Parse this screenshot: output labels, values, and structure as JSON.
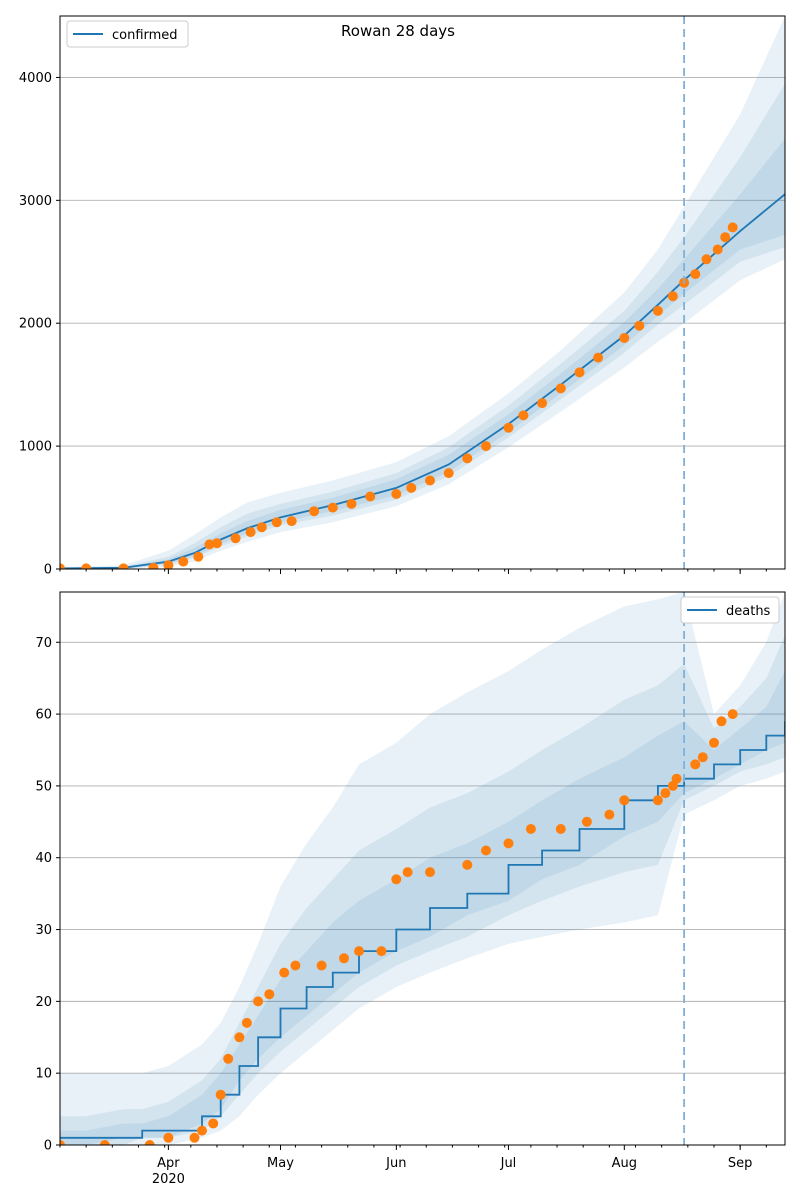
{
  "title": "Rowan 28 days",
  "colors": {
    "model": "#1f77b4",
    "observed": "#ff7f0e",
    "band": "#1f77b4",
    "grid": "#b0b0b0",
    "forecast_line": "#7fb0d8"
  },
  "x_axis": {
    "start_date": "2020-03-03",
    "end_date": "2020-09-13",
    "forecast_start": "2020-08-17",
    "month_labels": [
      {
        "date": "2020-04-01",
        "label": "Apr",
        "sub": "2020"
      },
      {
        "date": "2020-05-01",
        "label": "May",
        "sub": ""
      },
      {
        "date": "2020-06-01",
        "label": "Jun",
        "sub": ""
      },
      {
        "date": "2020-07-01",
        "label": "Jul",
        "sub": ""
      },
      {
        "date": "2020-08-01",
        "label": "Aug",
        "sub": ""
      },
      {
        "date": "2020-09-01",
        "label": "Sep",
        "sub": ""
      }
    ]
  },
  "chart_data": [
    {
      "type": "line",
      "series_name": "confirmed",
      "legend_position": "upper-left",
      "ylim": [
        0,
        4500
      ],
      "yticks": [
        0,
        1000,
        2000,
        3000,
        4000
      ],
      "grid": "y",
      "model_line": {
        "x": [
          "2020-03-03",
          "2020-03-20",
          "2020-04-01",
          "2020-04-08",
          "2020-04-15",
          "2020-04-22",
          "2020-05-01",
          "2020-05-15",
          "2020-06-01",
          "2020-06-15",
          "2020-07-01",
          "2020-07-15",
          "2020-08-01",
          "2020-08-10",
          "2020-08-17",
          "2020-09-01",
          "2020-09-13"
        ],
        "y": [
          5,
          10,
          60,
          130,
          240,
          330,
          420,
          520,
          660,
          850,
          1180,
          1500,
          1900,
          2150,
          2350,
          2750,
          3050
        ]
      },
      "bands": [
        {
          "lower": [
            0,
            0,
            20,
            60,
            150,
            220,
            300,
            380,
            510,
            690,
            990,
            1280,
            1640,
            1850,
            2000,
            2350,
            2520
          ],
          "upper": [
            15,
            30,
            150,
            280,
            420,
            540,
            620,
            720,
            870,
            1080,
            1430,
            1780,
            2250,
            2600,
            2950,
            3700,
            4500
          ]
        },
        {
          "lower": [
            2,
            3,
            35,
            90,
            185,
            265,
            355,
            435,
            565,
            755,
            1070,
            1380,
            1760,
            1990,
            2150,
            2500,
            2620
          ],
          "upper": [
            10,
            20,
            100,
            210,
            340,
            450,
            530,
            630,
            780,
            990,
            1330,
            1670,
            2100,
            2420,
            2700,
            3350,
            3950
          ]
        },
        {
          "lower": [
            3,
            6,
            45,
            105,
            205,
            290,
            380,
            470,
            600,
            790,
            1115,
            1430,
            1820,
            2060,
            2240,
            2600,
            2720
          ],
          "upper": [
            8,
            15,
            80,
            170,
            290,
            390,
            480,
            580,
            730,
            930,
            1260,
            1590,
            2010,
            2280,
            2520,
            3050,
            3500
          ]
        }
      ],
      "observed": {
        "x": [
          "2020-03-03",
          "2020-03-10",
          "2020-03-20",
          "2020-03-28",
          "2020-04-01",
          "2020-04-05",
          "2020-04-09",
          "2020-04-12",
          "2020-04-14",
          "2020-04-19",
          "2020-04-23",
          "2020-04-26",
          "2020-04-30",
          "2020-05-04",
          "2020-05-10",
          "2020-05-15",
          "2020-05-20",
          "2020-05-25",
          "2020-06-01",
          "2020-06-05",
          "2020-06-10",
          "2020-06-15",
          "2020-06-20",
          "2020-06-25",
          "2020-07-01",
          "2020-07-05",
          "2020-07-10",
          "2020-07-15",
          "2020-07-20",
          "2020-07-25",
          "2020-08-01",
          "2020-08-05",
          "2020-08-10",
          "2020-08-14",
          "2020-08-17",
          "2020-08-20",
          "2020-08-23",
          "2020-08-26",
          "2020-08-28",
          "2020-08-30"
        ],
        "y": [
          5,
          5,
          5,
          10,
          30,
          60,
          100,
          200,
          210,
          250,
          300,
          340,
          380,
          390,
          470,
          500,
          530,
          590,
          610,
          660,
          720,
          780,
          900,
          1000,
          1150,
          1250,
          1350,
          1470,
          1600,
          1720,
          1880,
          1980,
          2100,
          2220,
          2330,
          2400,
          2520,
          2600,
          2700,
          2780
        ]
      }
    },
    {
      "type": "line",
      "series_name": "deaths",
      "legend_position": "upper-right",
      "ylim": [
        0,
        77
      ],
      "yticks": [
        0,
        10,
        20,
        30,
        40,
        50,
        60,
        70
      ],
      "grid": "y",
      "model_line": {
        "x": [
          "2020-03-03",
          "2020-03-10",
          "2020-03-20",
          "2020-03-25",
          "2020-04-01",
          "2020-04-10",
          "2020-04-15",
          "2020-04-20",
          "2020-04-25",
          "2020-05-01",
          "2020-05-08",
          "2020-05-15",
          "2020-05-22",
          "2020-06-01",
          "2020-06-10",
          "2020-06-20",
          "2020-07-01",
          "2020-07-10",
          "2020-07-20",
          "2020-08-01",
          "2020-08-10",
          "2020-08-17",
          "2020-08-25",
          "2020-09-01",
          "2020-09-08",
          "2020-09-13"
        ],
        "y": [
          1,
          1,
          1,
          2,
          2,
          4,
          7,
          11,
          15,
          19,
          22,
          24,
          27,
          30,
          33,
          35,
          39,
          41,
          44,
          48,
          50,
          51,
          53,
          55,
          57,
          59
        ]
      },
      "bands": [
        {
          "lower": [
            0,
            0,
            0,
            0,
            0,
            1,
            2,
            4,
            7,
            10,
            13,
            16,
            19,
            22,
            24,
            26,
            28,
            29,
            30,
            31,
            32,
            46,
            48,
            50,
            51,
            52
          ],
          "upper": [
            10,
            10,
            10,
            10,
            11,
            14,
            17,
            22,
            28,
            36,
            42,
            47,
            53,
            56,
            60,
            63,
            66,
            69,
            72,
            75,
            76,
            77,
            60,
            64,
            70,
            77
          ]
        },
        {
          "lower": [
            0,
            0,
            0,
            1,
            1,
            2,
            4,
            7,
            10,
            13,
            16,
            19,
            22,
            25,
            27,
            29,
            32,
            34,
            36,
            38,
            39,
            48,
            50,
            52,
            53,
            54
          ],
          "upper": [
            4,
            4,
            5,
            5,
            6,
            9,
            12,
            17,
            22,
            28,
            33,
            37,
            41,
            44,
            47,
            49,
            52,
            55,
            58,
            62,
            64,
            67,
            58,
            61,
            65,
            71
          ]
        },
        {
          "lower": [
            0,
            0,
            1,
            1,
            1,
            3,
            5,
            9,
            12,
            15,
            18,
            21,
            24,
            27,
            29,
            32,
            34,
            37,
            39,
            43,
            45,
            49,
            51,
            53,
            55,
            56
          ],
          "upper": [
            2,
            2,
            3,
            3,
            4,
            7,
            10,
            14,
            18,
            23,
            27,
            31,
            34,
            37,
            40,
            42,
            45,
            48,
            51,
            54,
            57,
            59,
            55,
            58,
            61,
            66
          ]
        }
      ],
      "observed": {
        "x": [
          "2020-03-03",
          "2020-03-15",
          "2020-03-27",
          "2020-04-01",
          "2020-04-08",
          "2020-04-10",
          "2020-04-13",
          "2020-04-15",
          "2020-04-17",
          "2020-04-20",
          "2020-04-22",
          "2020-04-25",
          "2020-04-28",
          "2020-05-02",
          "2020-05-05",
          "2020-05-12",
          "2020-05-18",
          "2020-05-22",
          "2020-05-28",
          "2020-06-01",
          "2020-06-04",
          "2020-06-10",
          "2020-06-20",
          "2020-06-25",
          "2020-07-01",
          "2020-07-07",
          "2020-07-15",
          "2020-07-22",
          "2020-07-28",
          "2020-08-01",
          "2020-08-10",
          "2020-08-12",
          "2020-08-14",
          "2020-08-15",
          "2020-08-20",
          "2020-08-22",
          "2020-08-25",
          "2020-08-27",
          "2020-08-30"
        ],
        "y": [
          0,
          0,
          0,
          1,
          1,
          2,
          3,
          7,
          12,
          15,
          17,
          20,
          21,
          24,
          25,
          25,
          26,
          27,
          27,
          37,
          38,
          38,
          39,
          41,
          42,
          44,
          44,
          45,
          46,
          48,
          48,
          49,
          50,
          51,
          53,
          54,
          56,
          59,
          60
        ]
      }
    }
  ]
}
